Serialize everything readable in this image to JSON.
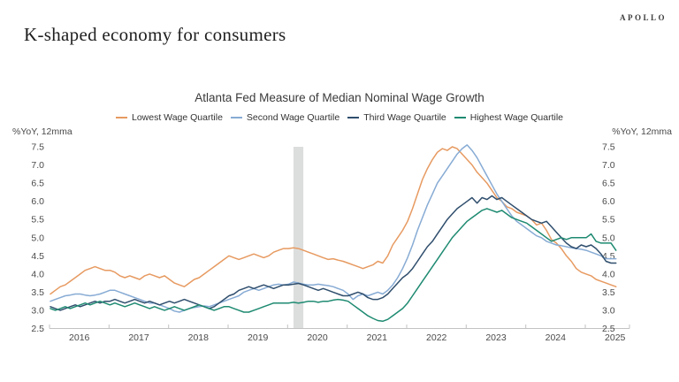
{
  "header": {
    "title": "K-shaped economy for consumers",
    "logo": "APOLLO"
  },
  "chart_data": {
    "type": "line",
    "title": "Atlanta Fed Measure of Median Nominal Wage Growth",
    "y_axis_label_left": "%YoY, 12mma",
    "y_axis_label_right": "%YoY, 12mma",
    "ylim": [
      2.5,
      7.5
    ],
    "ytick_step": 0.5,
    "grid": false,
    "legend_position": "top",
    "x_start": "2016-01",
    "x_end": "2025-07",
    "x_tick_years": [
      "2016",
      "2017",
      "2018",
      "2019",
      "2020",
      "2021",
      "2022",
      "2023",
      "2024",
      "2025"
    ],
    "recession_band": {
      "start": "2020-02",
      "end": "2020-04",
      "color": "#DCDEDD"
    },
    "axis_color": "#C2C2C2",
    "tick_text_color": "#4a4a4a",
    "series": [
      {
        "name": "Lowest Wage Quartile",
        "color": "#E79A61",
        "values": [
          3.45,
          3.55,
          3.65,
          3.7,
          3.8,
          3.9,
          4.0,
          4.1,
          4.15,
          4.2,
          4.15,
          4.1,
          4.1,
          4.05,
          3.95,
          3.9,
          3.95,
          3.9,
          3.85,
          3.95,
          4.0,
          3.95,
          3.9,
          3.95,
          3.85,
          3.75,
          3.7,
          3.65,
          3.75,
          3.85,
          3.9,
          4.0,
          4.1,
          4.2,
          4.3,
          4.4,
          4.5,
          4.45,
          4.4,
          4.45,
          4.5,
          4.55,
          4.5,
          4.45,
          4.5,
          4.6,
          4.65,
          4.7,
          4.7,
          4.72,
          4.7,
          4.65,
          4.6,
          4.55,
          4.5,
          4.45,
          4.4,
          4.42,
          4.38,
          4.35,
          4.3,
          4.25,
          4.2,
          4.15,
          4.2,
          4.25,
          4.35,
          4.3,
          4.5,
          4.8,
          5.0,
          5.2,
          5.45,
          5.8,
          6.2,
          6.6,
          6.9,
          7.15,
          7.35,
          7.45,
          7.4,
          7.5,
          7.45,
          7.3,
          7.15,
          7.0,
          6.8,
          6.65,
          6.5,
          6.3,
          6.1,
          6.0,
          5.85,
          5.8,
          5.7,
          5.65,
          5.6,
          5.5,
          5.35,
          5.4,
          5.2,
          4.95,
          4.85,
          4.7,
          4.5,
          4.35,
          4.15,
          4.05,
          4.0,
          3.95,
          3.85,
          3.8,
          3.75,
          3.7,
          3.65
        ]
      },
      {
        "name": "Second Wage Quartile",
        "color": "#87ABD4",
        "values": [
          3.25,
          3.3,
          3.35,
          3.4,
          3.42,
          3.45,
          3.45,
          3.42,
          3.4,
          3.42,
          3.45,
          3.5,
          3.55,
          3.55,
          3.5,
          3.45,
          3.4,
          3.35,
          3.3,
          3.25,
          3.2,
          3.2,
          3.15,
          3.1,
          3.05,
          2.98,
          2.95,
          3.0,
          3.05,
          3.08,
          3.1,
          3.12,
          3.1,
          3.15,
          3.2,
          3.25,
          3.3,
          3.35,
          3.4,
          3.5,
          3.55,
          3.6,
          3.55,
          3.6,
          3.65,
          3.7,
          3.72,
          3.7,
          3.72,
          3.78,
          3.75,
          3.72,
          3.7,
          3.7,
          3.72,
          3.7,
          3.68,
          3.65,
          3.6,
          3.55,
          3.45,
          3.3,
          3.4,
          3.45,
          3.4,
          3.45,
          3.5,
          3.45,
          3.55,
          3.7,
          3.9,
          4.15,
          4.45,
          4.8,
          5.2,
          5.55,
          5.9,
          6.2,
          6.5,
          6.7,
          6.9,
          7.1,
          7.3,
          7.45,
          7.55,
          7.4,
          7.2,
          6.95,
          6.7,
          6.45,
          6.2,
          6.0,
          5.8,
          5.6,
          5.45,
          5.35,
          5.25,
          5.15,
          5.05,
          5.0,
          4.9,
          4.85,
          4.8,
          4.78,
          4.75,
          4.72,
          4.7,
          4.68,
          4.65,
          4.6,
          4.55,
          4.5,
          4.42,
          4.42,
          4.42
        ]
      },
      {
        "name": "Third Wage Quartile",
        "color": "#2F4E6D",
        "values": [
          3.1,
          3.05,
          3.0,
          3.05,
          3.1,
          3.15,
          3.1,
          3.15,
          3.2,
          3.25,
          3.2,
          3.25,
          3.25,
          3.3,
          3.25,
          3.2,
          3.25,
          3.3,
          3.25,
          3.2,
          3.25,
          3.2,
          3.15,
          3.2,
          3.25,
          3.2,
          3.25,
          3.3,
          3.25,
          3.2,
          3.15,
          3.1,
          3.05,
          3.1,
          3.2,
          3.3,
          3.4,
          3.45,
          3.55,
          3.6,
          3.65,
          3.6,
          3.65,
          3.7,
          3.65,
          3.6,
          3.65,
          3.7,
          3.7,
          3.72,
          3.74,
          3.7,
          3.65,
          3.6,
          3.55,
          3.6,
          3.55,
          3.5,
          3.45,
          3.4,
          3.4,
          3.45,
          3.5,
          3.45,
          3.35,
          3.3,
          3.3,
          3.35,
          3.45,
          3.6,
          3.75,
          3.9,
          4.0,
          4.15,
          4.35,
          4.55,
          4.75,
          4.9,
          5.1,
          5.3,
          5.5,
          5.65,
          5.8,
          5.9,
          6.0,
          6.1,
          5.95,
          6.1,
          6.05,
          6.15,
          6.05,
          6.1,
          6.0,
          5.9,
          5.8,
          5.7,
          5.6,
          5.5,
          5.45,
          5.4,
          5.45,
          5.3,
          5.15,
          5.0,
          4.85,
          4.75,
          4.7,
          4.8,
          4.75,
          4.8,
          4.7,
          4.55,
          4.35,
          4.3,
          4.3
        ]
      },
      {
        "name": "Highest Wage Quartile",
        "color": "#1E8A71",
        "values": [
          3.05,
          3.0,
          3.05,
          3.1,
          3.05,
          3.1,
          3.15,
          3.2,
          3.15,
          3.2,
          3.25,
          3.2,
          3.15,
          3.2,
          3.15,
          3.1,
          3.15,
          3.2,
          3.15,
          3.1,
          3.05,
          3.1,
          3.05,
          3.0,
          3.05,
          3.1,
          3.05,
          3.0,
          3.05,
          3.1,
          3.15,
          3.1,
          3.05,
          3.0,
          3.05,
          3.1,
          3.1,
          3.05,
          3.0,
          2.95,
          2.95,
          3.0,
          3.05,
          3.1,
          3.15,
          3.2,
          3.2,
          3.2,
          3.2,
          3.22,
          3.2,
          3.22,
          3.25,
          3.25,
          3.22,
          3.25,
          3.25,
          3.28,
          3.3,
          3.28,
          3.25,
          3.15,
          3.05,
          2.95,
          2.85,
          2.78,
          2.72,
          2.7,
          2.75,
          2.85,
          2.95,
          3.05,
          3.2,
          3.4,
          3.6,
          3.8,
          4.0,
          4.2,
          4.4,
          4.6,
          4.8,
          5.0,
          5.15,
          5.3,
          5.45,
          5.55,
          5.65,
          5.75,
          5.8,
          5.75,
          5.7,
          5.75,
          5.65,
          5.55,
          5.5,
          5.45,
          5.4,
          5.3,
          5.2,
          5.1,
          5.0,
          4.9,
          4.95,
          5.0,
          4.95,
          5.0,
          5.0,
          5.0,
          5.0,
          5.1,
          4.9,
          4.85,
          4.85,
          4.85,
          4.65
        ]
      }
    ]
  }
}
